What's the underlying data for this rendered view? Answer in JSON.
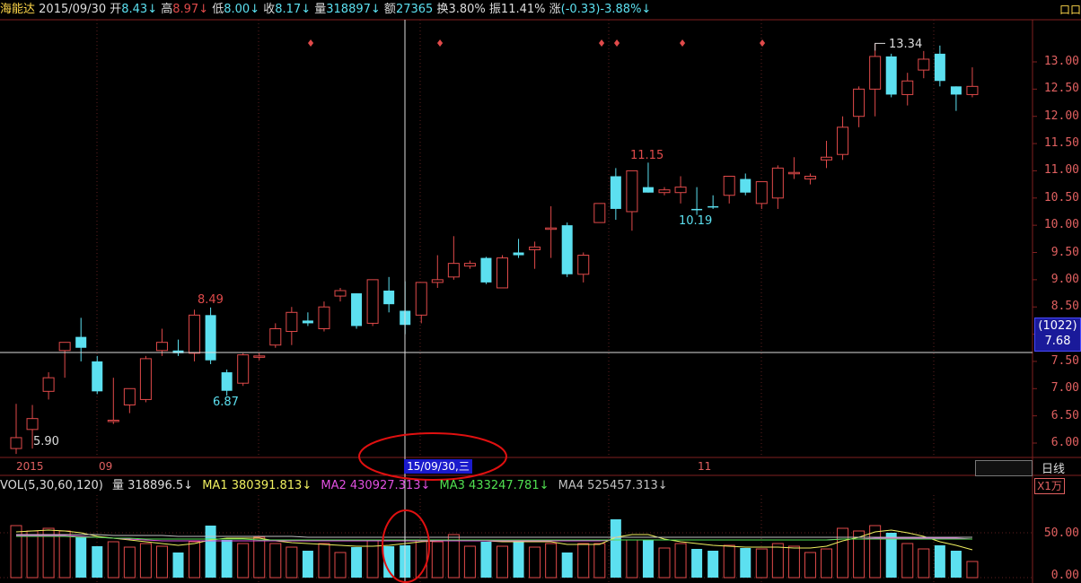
{
  "header": {
    "stock_name": "海能达",
    "date": "2015/09/30",
    "open_label": "开",
    "open_value": "8.43↓",
    "high_label": "高",
    "high_value": "8.97↓",
    "low_label": "低",
    "low_value": "8.00↓",
    "close_label": "收",
    "close_value": "8.17↓",
    "volume_label": "量",
    "volume_value": "318897↓",
    "amount_label": "额",
    "amount_value": "27365",
    "turnover_label": "换",
    "turnover_value": "3.80%",
    "amplitude_label": "振",
    "amplitude_value": "11.41%",
    "change_label": "涨",
    "change_value": "(-0.33)-3.88%↓",
    "corner_glyph": "口口"
  },
  "price_axis": [
    "13.00",
    "12.50",
    "12.00",
    "11.50",
    "11.00",
    "10.50",
    "10.00",
    "9.50",
    "9.00",
    "8.50",
    "8.00",
    "7.50",
    "7.00",
    "6.50",
    "6.00"
  ],
  "cursor": {
    "count": "(1022)",
    "price": "7.68"
  },
  "x_axis": {
    "labels": [
      "2015",
      "09",
      "11"
    ],
    "crosshair_date": "15/09/30,三"
  },
  "period": {
    "label": "日线"
  },
  "annotations": {
    "high": "13.34",
    "mid_high": "11.15",
    "mid_low": "10.19",
    "early_high": "8.49",
    "early_low": "6.87",
    "start_low": "5.90"
  },
  "volume": {
    "title": "VOL(5,30,60,120)",
    "vol_label": "量",
    "vol_value": "318896.5↓",
    "ma1_label": "MA1",
    "ma1_value": "380391.813↓",
    "ma2_label": "MA2",
    "ma2_value": "430927.313↓",
    "ma3_label": "MA3",
    "ma3_value": "433247.781↓",
    "ma4_label": "MA4",
    "ma4_value": "525457.313↓",
    "axis": [
      "50.00",
      "0.00"
    ],
    "unit_button": "X1万"
  },
  "colors": {
    "up": "#e04a4a",
    "down": "#5ce0f0",
    "ma1": "#f0f060",
    "ma2": "#e050e0",
    "ma3": "#50e050",
    "ma4": "#c0c0c0"
  },
  "chart_data": {
    "type": "candlestick",
    "ylim": [
      5.8,
      13.5
    ],
    "candles": [
      {
        "o": 5.9,
        "h": 6.72,
        "l": 5.8,
        "c": 6.1
      },
      {
        "o": 6.25,
        "h": 6.7,
        "l": 5.9,
        "c": 6.45
      },
      {
        "o": 6.95,
        "h": 7.3,
        "l": 6.8,
        "c": 7.2
      },
      {
        "o": 7.7,
        "h": 7.85,
        "l": 7.2,
        "c": 7.85
      },
      {
        "o": 7.95,
        "h": 8.3,
        "l": 7.5,
        "c": 7.75
      },
      {
        "o": 7.5,
        "h": 7.6,
        "l": 6.9,
        "c": 6.95
      },
      {
        "o": 6.4,
        "h": 7.2,
        "l": 6.35,
        "c": 6.42
      },
      {
        "o": 6.7,
        "h": 7.0,
        "l": 6.55,
        "c": 7.0
      },
      {
        "o": 6.8,
        "h": 7.6,
        "l": 6.75,
        "c": 7.55
      },
      {
        "o": 7.7,
        "h": 8.1,
        "l": 7.6,
        "c": 7.85
      },
      {
        "o": 7.7,
        "h": 7.9,
        "l": 7.6,
        "c": 7.65
      },
      {
        "o": 7.65,
        "h": 8.45,
        "l": 7.5,
        "c": 8.35
      },
      {
        "o": 8.35,
        "h": 8.49,
        "l": 7.45,
        "c": 7.52
      },
      {
        "o": 7.3,
        "h": 7.35,
        "l": 6.87,
        "c": 6.96
      },
      {
        "o": 7.1,
        "h": 7.65,
        "l": 7.05,
        "c": 7.62
      },
      {
        "o": 7.6,
        "h": 7.65,
        "l": 7.52,
        "c": 7.6
      },
      {
        "o": 7.8,
        "h": 8.2,
        "l": 7.75,
        "c": 8.1
      },
      {
        "o": 8.05,
        "h": 8.5,
        "l": 7.8,
        "c": 8.4
      },
      {
        "o": 8.25,
        "h": 8.4,
        "l": 8.15,
        "c": 8.2
      },
      {
        "o": 8.1,
        "h": 8.6,
        "l": 8.05,
        "c": 8.5
      },
      {
        "o": 8.7,
        "h": 8.85,
        "l": 8.6,
        "c": 8.8
      },
      {
        "o": 8.75,
        "h": 8.75,
        "l": 8.1,
        "c": 8.15
      },
      {
        "o": 8.2,
        "h": 9.0,
        "l": 8.15,
        "c": 9.0
      },
      {
        "o": 8.8,
        "h": 9.05,
        "l": 8.4,
        "c": 8.55
      },
      {
        "o": 8.43,
        "h": 8.97,
        "l": 8.0,
        "c": 8.17
      },
      {
        "o": 8.35,
        "h": 8.95,
        "l": 8.2,
        "c": 8.95
      },
      {
        "o": 8.95,
        "h": 9.45,
        "l": 8.85,
        "c": 9.0
      },
      {
        "o": 9.05,
        "h": 9.8,
        "l": 9.0,
        "c": 9.3
      },
      {
        "o": 9.25,
        "h": 9.35,
        "l": 9.2,
        "c": 9.3
      },
      {
        "o": 9.4,
        "h": 9.42,
        "l": 8.92,
        "c": 8.95
      },
      {
        "o": 8.85,
        "h": 9.45,
        "l": 8.85,
        "c": 9.4
      },
      {
        "o": 9.5,
        "h": 9.75,
        "l": 9.4,
        "c": 9.45
      },
      {
        "o": 9.55,
        "h": 9.7,
        "l": 9.2,
        "c": 9.6
      },
      {
        "o": 9.95,
        "h": 10.35,
        "l": 9.4,
        "c": 9.95
      },
      {
        "o": 10.0,
        "h": 10.05,
        "l": 9.05,
        "c": 9.1
      },
      {
        "o": 9.1,
        "h": 9.5,
        "l": 8.95,
        "c": 9.45
      },
      {
        "o": 10.05,
        "h": 10.4,
        "l": 10.05,
        "c": 10.4
      },
      {
        "o": 10.9,
        "h": 11.05,
        "l": 10.1,
        "c": 10.3
      },
      {
        "o": 10.25,
        "h": 11.0,
        "l": 9.9,
        "c": 11.0
      },
      {
        "o": 10.7,
        "h": 11.15,
        "l": 10.6,
        "c": 10.6
      },
      {
        "o": 10.6,
        "h": 10.7,
        "l": 10.55,
        "c": 10.65
      },
      {
        "o": 10.6,
        "h": 10.9,
        "l": 10.4,
        "c": 10.7
      },
      {
        "o": 10.3,
        "h": 10.7,
        "l": 10.19,
        "c": 10.28
      },
      {
        "o": 10.35,
        "h": 10.55,
        "l": 10.3,
        "c": 10.33
      },
      {
        "o": 10.55,
        "h": 10.9,
        "l": 10.4,
        "c": 10.9
      },
      {
        "o": 10.85,
        "h": 10.95,
        "l": 10.55,
        "c": 10.6
      },
      {
        "o": 10.4,
        "h": 10.8,
        "l": 10.3,
        "c": 10.8
      },
      {
        "o": 10.5,
        "h": 11.1,
        "l": 10.3,
        "c": 11.05
      },
      {
        "o": 10.95,
        "h": 11.25,
        "l": 10.85,
        "c": 10.97
      },
      {
        "o": 10.85,
        "h": 10.95,
        "l": 10.75,
        "c": 10.9
      },
      {
        "o": 11.2,
        "h": 11.55,
        "l": 11.05,
        "c": 11.25
      },
      {
        "o": 11.3,
        "h": 12.0,
        "l": 11.2,
        "c": 11.8
      },
      {
        "o": 12.0,
        "h": 12.55,
        "l": 11.8,
        "c": 12.5
      },
      {
        "o": 12.5,
        "h": 13.34,
        "l": 12.0,
        "c": 13.1
      },
      {
        "o": 13.1,
        "h": 13.15,
        "l": 12.35,
        "c": 12.4
      },
      {
        "o": 12.4,
        "h": 12.8,
        "l": 12.2,
        "c": 12.65
      },
      {
        "o": 12.85,
        "h": 13.2,
        "l": 12.7,
        "c": 13.05
      },
      {
        "o": 13.15,
        "h": 13.3,
        "l": 12.55,
        "c": 12.65
      },
      {
        "o": 12.55,
        "h": 12.55,
        "l": 12.1,
        "c": 12.4
      },
      {
        "o": 12.4,
        "h": 12.9,
        "l": 12.35,
        "c": 12.55
      }
    ],
    "volumes": [
      58,
      52,
      55,
      52,
      45,
      35,
      40,
      34,
      38,
      35,
      28,
      40,
      58,
      42,
      38,
      45,
      38,
      34,
      30,
      38,
      28,
      34,
      42,
      35,
      36,
      42,
      40,
      48,
      35,
      40,
      35,
      42,
      34,
      38,
      28,
      38,
      38,
      65,
      42,
      42,
      33,
      38,
      32,
      30,
      36,
      33,
      32,
      38,
      35,
      28,
      32,
      55,
      52,
      58,
      50,
      38,
      32,
      36,
      30,
      18
    ],
    "ma_lines": {
      "ma1": [
        51,
        52,
        53,
        52,
        50,
        46,
        44,
        42,
        40,
        38,
        36,
        38,
        42,
        44,
        44,
        44,
        41,
        39,
        38,
        37,
        36,
        35,
        35,
        36,
        38,
        40,
        41,
        42,
        42,
        41,
        40,
        40,
        40,
        40,
        37,
        37,
        37,
        45,
        48,
        48,
        43,
        40,
        38,
        36,
        35,
        34,
        34,
        34,
        33,
        33,
        35,
        41,
        45,
        51,
        53,
        50,
        46,
        40,
        36,
        31
      ],
      "ma2": [
        47,
        47,
        47,
        47,
        46,
        45,
        44,
        43,
        42,
        41,
        41,
        41,
        41,
        41,
        41,
        41,
        41,
        41,
        41,
        41,
        41,
        41,
        41,
        41,
        41,
        41,
        41,
        41,
        41,
        41,
        41,
        41,
        41,
        41,
        41,
        41,
        41,
        42,
        42,
        42,
        42,
        42,
        42,
        42,
        42,
        42,
        42,
        42,
        42,
        42,
        42,
        43,
        43,
        44,
        44,
        44,
        44,
        44,
        44,
        43
      ],
      "ma3": [
        46,
        46,
        46,
        46,
        45,
        45,
        44,
        44,
        43,
        43,
        43,
        43,
        43,
        43,
        43,
        42,
        42,
        42,
        42,
        42,
        42,
        42,
        42,
        42,
        42,
        42,
        42,
        42,
        42,
        42,
        42,
        42,
        42,
        42,
        42,
        42,
        42,
        42,
        42,
        42,
        42,
        42,
        42,
        42,
        42,
        42,
        42,
        42,
        42,
        42,
        42,
        43,
        43,
        43,
        43,
        43,
        43,
        43,
        43,
        43
      ],
      "ma4": [
        48,
        48,
        48,
        48,
        48,
        48,
        47,
        47,
        47,
        47,
        46,
        46,
        46,
        46,
        46,
        46,
        46,
        46,
        45,
        45,
        45,
        45,
        45,
        45,
        45,
        45,
        45,
        45,
        45,
        45,
        45,
        45,
        45,
        45,
        45,
        45,
        45,
        45,
        45,
        45,
        45,
        45,
        45,
        45,
        45,
        45,
        45,
        45,
        45,
        45,
        45,
        45,
        45,
        45,
        45,
        45,
        45,
        45,
        45,
        45
      ]
    },
    "ylim_volume": [
      0,
      70
    ],
    "volume_unit": "X1万"
  }
}
